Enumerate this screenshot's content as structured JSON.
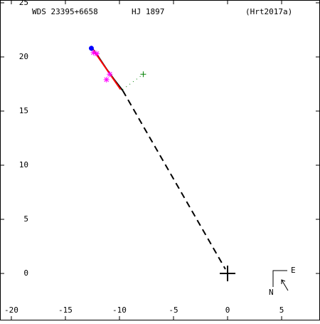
{
  "chart_data": {
    "type": "scatter",
    "texts": [
      "WDS 23395+6658",
      "HJ 1897",
      "(Hrt2017a)"
    ],
    "compass": [
      "E",
      "N"
    ],
    "xlim": [
      -21.05,
      8.55
    ],
    "ylim": [
      -4.34,
      25.26
    ],
    "xticks": [
      -20,
      -15,
      -10,
      -5,
      0,
      5
    ],
    "yticks": [
      0,
      5,
      10,
      15,
      20,
      25
    ],
    "series": [
      {
        "color": "#000000",
        "style": "line",
        "x": [
          -12.6,
          -12.0,
          -11.2,
          -10.4,
          -9.7
        ],
        "values": [
          20.9,
          20.1,
          18.9,
          17.8,
          16.9
        ]
      },
      {
        "color": "#ff0000",
        "style": "line",
        "x": [
          -12.4,
          -9.9
        ],
        "values": [
          20.6,
          17.0
        ]
      },
      {
        "color": "#000000",
        "style": "dash",
        "x": [
          -9.7,
          -0.2
        ],
        "values": [
          16.9,
          0.4
        ]
      },
      {
        "color": "#008000",
        "style": "dotline",
        "x": [
          -9.7,
          -7.8
        ],
        "values": [
          17.0,
          18.4
        ]
      },
      {
        "color": "#008000",
        "style": "plus",
        "x": [
          -7.8
        ],
        "values": [
          18.4
        ]
      },
      {
        "color": "#ff00ff",
        "style": "asterisk",
        "x": [
          -12.4,
          -12.1,
          -11.2,
          -10.9
        ],
        "values": [
          20.4,
          20.3,
          17.9,
          18.4
        ]
      },
      {
        "color": "#0000ff",
        "style": "dot",
        "x": [
          -12.6
        ],
        "values": [
          20.8
        ]
      },
      {
        "color": "#000000",
        "style": "bigplus",
        "x": [
          0
        ],
        "values": [
          0
        ]
      }
    ]
  }
}
